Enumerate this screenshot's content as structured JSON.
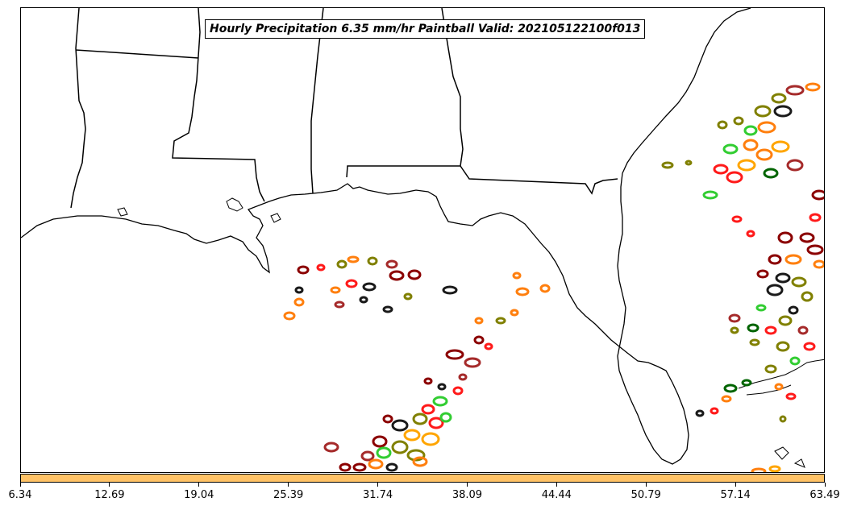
{
  "title": "Hourly Precipitation 6.35 mm/hr Paintball Valid: 202105122100f013",
  "colorbar": {
    "color": "#ffc266",
    "ticks": [
      "6.34",
      "12.69",
      "19.04",
      "25.39",
      "31.74",
      "38.09",
      "44.44",
      "50.79",
      "57.14",
      "63.49"
    ]
  },
  "map": {
    "region": "Gulf of Mexico / US Southeast",
    "features": [
      "coastline",
      "state-borders"
    ],
    "ensemble_member_colors": [
      "#8b0000",
      "#1a1a1a",
      "#ff1a1a",
      "#808000",
      "#32cd32",
      "#ff7f0e",
      "#ffa500",
      "#006400",
      "#a52a2a"
    ]
  }
}
